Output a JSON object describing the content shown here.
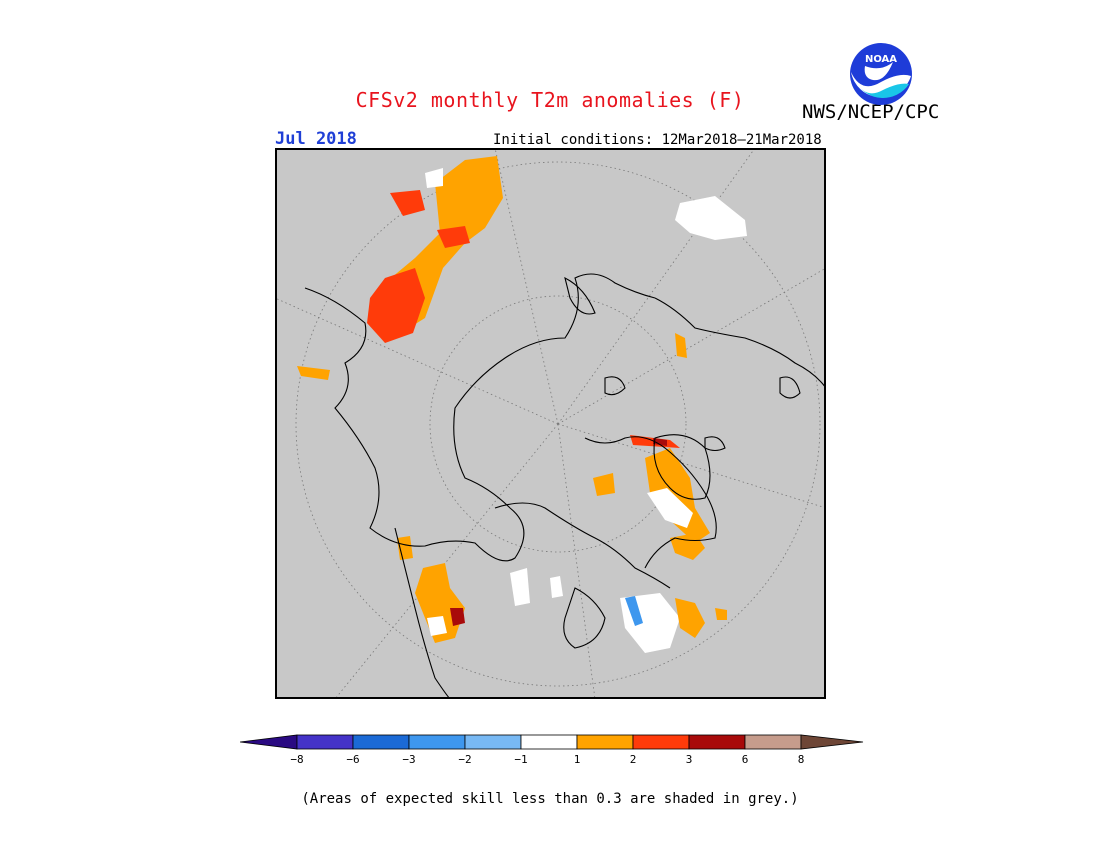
{
  "header": {
    "title": "CFSv2 monthly T2m anomalies (F)",
    "agency": "NWS/NCEP/CPC",
    "month": "Jul 2018",
    "initial_conditions": "Initial conditions: 12Mar2018–21Mar2018",
    "logo_text": "NOAA"
  },
  "legend": {
    "colors": [
      "#2a0a82",
      "#4433c8",
      "#1b6ad6",
      "#3e97ee",
      "#78b9f4",
      "#ffffff",
      "#ffa300",
      "#ff3b0a",
      "#a80a0a",
      "#c69c8c",
      "#6e4636"
    ],
    "ticks": [
      "−8",
      "−6",
      "−3",
      "−2",
      "−1",
      "1",
      "2",
      "3",
      "6",
      "8"
    ]
  },
  "footnote": "(Areas of expected skill less than 0.3 are shaded in grey.)",
  "colors": {
    "map_background": "#c8c8c8",
    "title": "#e8141e",
    "month_label": "#1f3fd6",
    "noaa_blue": "#1e3cd8",
    "noaa_cyan": "#19c6e8"
  }
}
